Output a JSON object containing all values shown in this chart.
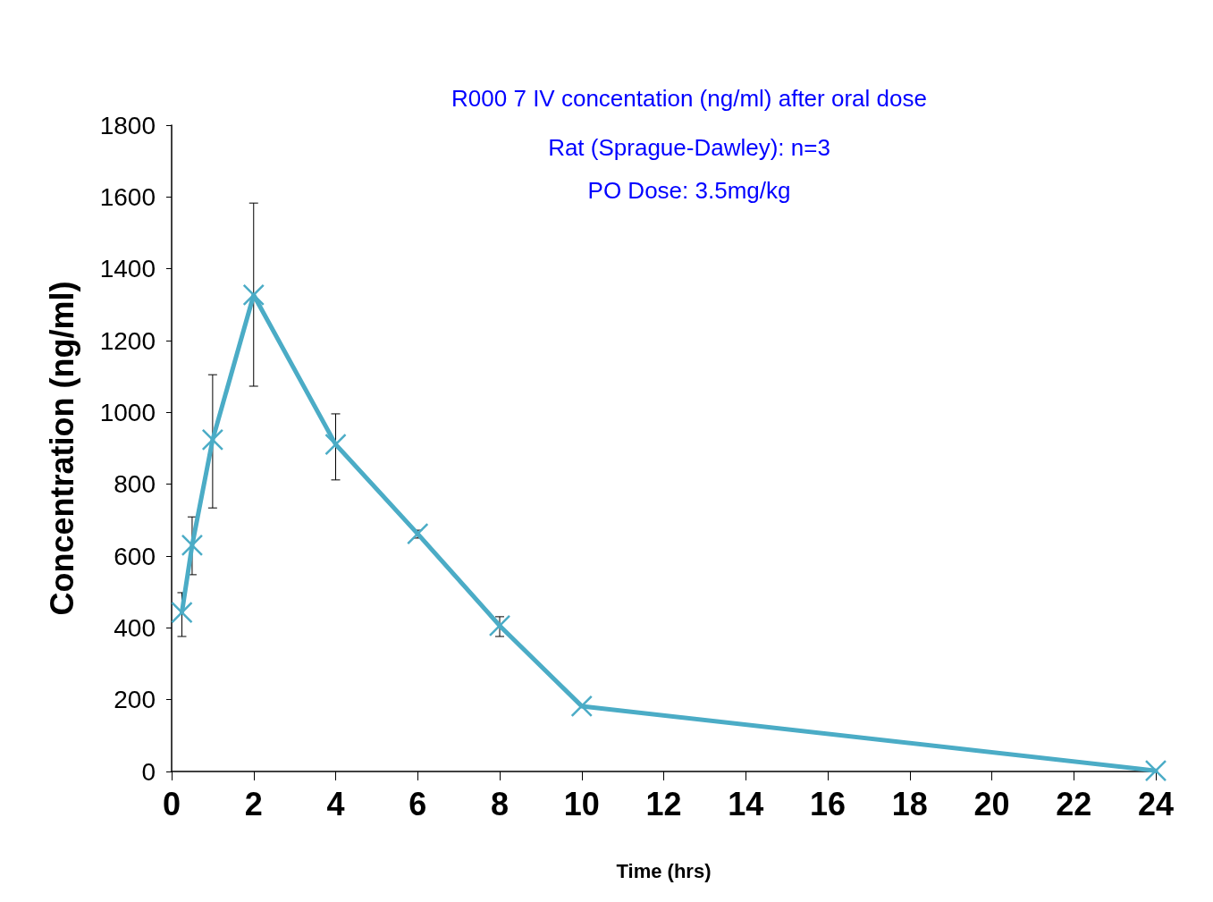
{
  "chart_data": {
    "type": "line",
    "title": "R000 7 IV concentation (ng/ml) after oral dose",
    "subtitle": "Rat (Sprague-Dawley): n=3\nPO Dose: 3.5mg/kg",
    "xlabel": "Time (hrs)",
    "ylabel": "Concentration (ng/ml)",
    "x": [
      0.25,
      0.5,
      1,
      2,
      4,
      6,
      8,
      10,
      24
    ],
    "series": [
      {
        "color": "#4bacc6",
        "values": [
          443,
          630,
          924,
          1327,
          911,
          662,
          406,
          182,
          2
        ],
        "errors": [
          [
            376,
            498
          ],
          [
            548,
            709
          ],
          [
            734,
            1105
          ],
          [
            1073,
            1583
          ],
          [
            812,
            996
          ],
          [
            650,
            672
          ],
          [
            376,
            431
          ],
          null,
          null
        ]
      }
    ],
    "xlim": [
      0,
      24
    ],
    "xticks": [
      0,
      2,
      4,
      6,
      8,
      10,
      12,
      14,
      16,
      18,
      20,
      22,
      24
    ],
    "ylim": [
      0,
      1800
    ],
    "yticks": [
      0,
      200,
      400,
      600,
      800,
      1000,
      1200,
      1400,
      1600,
      1800
    ],
    "grid": false,
    "marker": "cross",
    "line_style": "solid"
  }
}
